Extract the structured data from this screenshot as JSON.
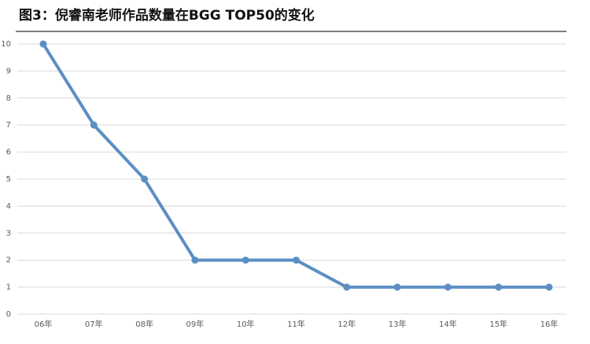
{
  "chart_data": {
    "type": "line",
    "title": "图3：倪睿南老师作品数量在BGG TOP50的变化",
    "categories": [
      "06年",
      "07年",
      "08年",
      "09年",
      "10年",
      "11年",
      "12年",
      "13年",
      "14年",
      "15年",
      "16年"
    ],
    "series": [
      {
        "name": "作品数量",
        "color": "#5b8fc4",
        "values": [
          10,
          7,
          5,
          2,
          2,
          2,
          1,
          1,
          1,
          1,
          1
        ]
      }
    ],
    "ylim": [
      0,
      10
    ],
    "yticks": [
      0,
      1,
      2,
      3,
      4,
      5,
      6,
      7,
      8,
      9,
      10
    ],
    "grid": true
  }
}
